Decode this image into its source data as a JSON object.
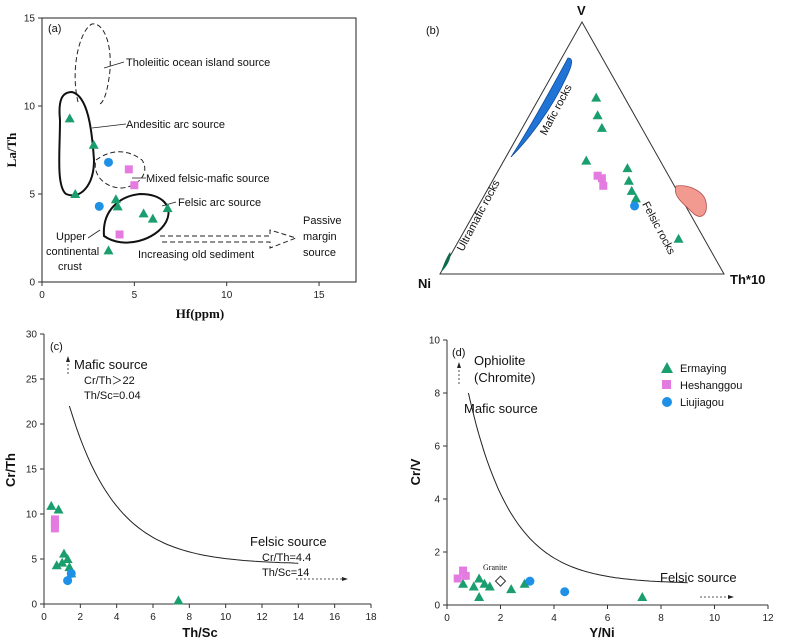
{
  "colors": {
    "ermaying": "#1a9e6e",
    "heshanggou": "#e47be0",
    "liujiagou": "#1e90e6",
    "mafic": "#1f74d6",
    "felsic": "#f29a90",
    "ultramafic": "#0e6a4a"
  },
  "chart_data": [
    {
      "panel": "(a)",
      "type": "scatter",
      "xlabel": "Hf(ppm)",
      "ylabel": "La/Th",
      "xlim": [
        0,
        17
      ],
      "ylim": [
        0,
        15
      ],
      "xticks": [
        "0",
        "5",
        "10",
        "15"
      ],
      "yticks": [
        "0",
        "5",
        "10",
        "15"
      ],
      "annotations": [
        "Tholeiitic ocean island source",
        "Andesitic arc source",
        "Mixed felsic-mafic source",
        "Felsic arc source",
        "Passive",
        "margin",
        "source",
        "Upper",
        "continental",
        "crust",
        "Increasing old sediment"
      ],
      "series": [
        {
          "name": "Ermaying",
          "marker": "triangle",
          "points": [
            [
              1.5,
              9.3
            ],
            [
              2.8,
              7.8
            ],
            [
              1.8,
              5.0
            ],
            [
              4.0,
              4.7
            ],
            [
              4.1,
              4.3
            ],
            [
              5.5,
              3.9
            ],
            [
              6.0,
              3.6
            ],
            [
              6.8,
              4.2
            ],
            [
              3.6,
              1.8
            ]
          ]
        },
        {
          "name": "Heshanggou",
          "marker": "square",
          "points": [
            [
              4.7,
              6.4
            ],
            [
              5.0,
              5.5
            ],
            [
              4.2,
              2.7
            ]
          ]
        },
        {
          "name": "Liujiagou",
          "marker": "circle",
          "points": [
            [
              3.6,
              6.8
            ],
            [
              3.1,
              4.3
            ]
          ]
        }
      ]
    },
    {
      "panel": "(b)",
      "type": "ternary",
      "vertices": [
        "V",
        "Ni",
        "Th*10"
      ],
      "fields": [
        "Mafic rocks",
        "Ultramafic rocks",
        "Felsic rocks"
      ],
      "series": [
        {
          "name": "Ermaying",
          "marker": "triangle",
          "points": [
            [
              0.7,
              0.1,
              0.2
            ],
            [
              0.63,
              0.13,
              0.24
            ],
            [
              0.58,
              0.14,
              0.28
            ],
            [
              0.45,
              0.26,
              0.29
            ],
            [
              0.42,
              0.13,
              0.45
            ],
            [
              0.37,
              0.15,
              0.48
            ],
            [
              0.33,
              0.16,
              0.51
            ],
            [
              0.3,
              0.16,
              0.54
            ],
            [
              0.14,
              0.09,
              0.77
            ]
          ]
        },
        {
          "name": "Heshanggou",
          "marker": "square",
          "points": [
            [
              0.39,
              0.25,
              0.36
            ],
            [
              0.38,
              0.24,
              0.38
            ],
            [
              0.35,
              0.25,
              0.4
            ]
          ]
        },
        {
          "name": "Liujiagou",
          "marker": "circle",
          "points": [
            [
              0.27,
              0.18,
              0.55
            ]
          ]
        }
      ]
    },
    {
      "panel": "(c)",
      "type": "scatter",
      "xlabel": "Th/Sc",
      "ylabel": "Cr/Th",
      "xlim": [
        0,
        18
      ],
      "ylim": [
        0,
        30
      ],
      "xticks": [
        "0",
        "2",
        "4",
        "6",
        "8",
        "10",
        "12",
        "14",
        "16",
        "18"
      ],
      "yticks": [
        "0",
        "5",
        "10",
        "15",
        "20",
        "25",
        "30"
      ],
      "annotations": [
        "Mafic source",
        "Cr/Th＞22",
        "Th/Sc=0.04",
        "Felsic source",
        "Cr/Th=4.4",
        "Th/Sc=14"
      ],
      "series": [
        {
          "name": "Ermaying",
          "marker": "triangle",
          "points": [
            [
              0.4,
              10.9
            ],
            [
              0.8,
              10.5
            ],
            [
              0.7,
              4.3
            ],
            [
              1.1,
              5.6
            ],
            [
              1.0,
              4.6
            ],
            [
              1.3,
              5.0
            ],
            [
              1.4,
              4.1
            ],
            [
              1.5,
              3.4
            ],
            [
              7.4,
              0.4
            ]
          ]
        },
        {
          "name": "Heshanggou",
          "marker": "square",
          "points": [
            [
              0.6,
              9.4
            ],
            [
              0.6,
              8.9
            ],
            [
              0.6,
              8.4
            ]
          ]
        },
        {
          "name": "Liujiagou",
          "marker": "circle",
          "points": [
            [
              1.3,
              2.6
            ],
            [
              1.5,
              3.4
            ]
          ]
        }
      ]
    },
    {
      "panel": "(d)",
      "type": "scatter",
      "xlabel": "Y/Ni",
      "ylabel": "Cr/V",
      "xlim": [
        0,
        12
      ],
      "ylim": [
        0,
        10
      ],
      "xticks": [
        "0",
        "2",
        "4",
        "6",
        "8",
        "10",
        "12"
      ],
      "yticks": [
        "0",
        "2",
        "4",
        "6",
        "8",
        "10"
      ],
      "annotations": [
        "Ophiolite",
        "(Chromite)",
        "Mafic source",
        "Felsic source",
        "Granite"
      ],
      "legend": [
        "Ermaying",
        "Heshanggou",
        "Liujiagou"
      ],
      "series": [
        {
          "name": "Ermaying",
          "marker": "triangle",
          "points": [
            [
              0.6,
              0.8
            ],
            [
              1.0,
              0.7
            ],
            [
              1.2,
              1.0
            ],
            [
              1.4,
              0.8
            ],
            [
              1.6,
              0.7
            ],
            [
              1.2,
              0.3
            ],
            [
              2.4,
              0.6
            ],
            [
              2.9,
              0.8
            ],
            [
              7.3,
              0.3
            ]
          ]
        },
        {
          "name": "Heshanggou",
          "marker": "square",
          "points": [
            [
              0.4,
              1.0
            ],
            [
              0.6,
              1.3
            ],
            [
              0.7,
              1.1
            ]
          ]
        },
        {
          "name": "Liujiagou",
          "marker": "circle",
          "points": [
            [
              3.1,
              0.9
            ],
            [
              4.4,
              0.5
            ]
          ]
        }
      ],
      "granite": [
        2.0,
        0.9
      ]
    }
  ]
}
